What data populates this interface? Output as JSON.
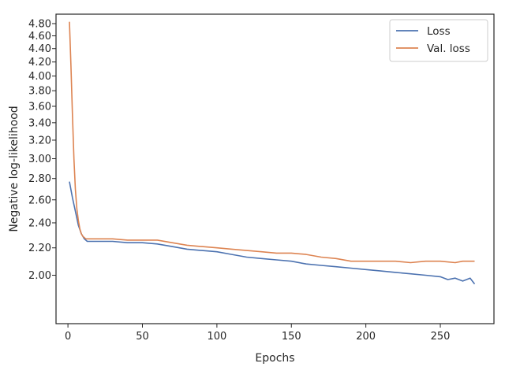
{
  "chart_data": {
    "type": "line",
    "title": "",
    "xlabel": "Epochs",
    "ylabel": "Negative log-likelihood",
    "xlim": [
      -8,
      286
    ],
    "ylim": [
      1.69,
      4.96
    ],
    "y_scale": "log",
    "grid": false,
    "legend_placement": "top-right",
    "x_ticks": [
      0,
      50,
      100,
      150,
      200,
      250
    ],
    "x_tick_labels": [
      "0",
      "50",
      "100",
      "150",
      "200",
      "250"
    ],
    "y_ticks": [
      2.0,
      2.2,
      2.4,
      2.6,
      2.8,
      3.0,
      3.2,
      3.4,
      3.6,
      3.8,
      4.0,
      4.2,
      4.4,
      4.6,
      4.8
    ],
    "y_tick_labels": [
      "2.00",
      "2.20",
      "2.40",
      "2.60",
      "2.80",
      "3.00",
      "3.20",
      "3.40",
      "3.60",
      "3.80",
      "4.00",
      "4.20",
      "4.40",
      "4.60",
      "4.80"
    ],
    "series": [
      {
        "name": "Loss",
        "color": "#4c72b0",
        "x": [
          1,
          3,
          5,
          7,
          9,
          11,
          13,
          16,
          20,
          25,
          30,
          40,
          50,
          60,
          70,
          80,
          90,
          100,
          110,
          120,
          130,
          140,
          150,
          160,
          170,
          180,
          190,
          200,
          210,
          220,
          230,
          240,
          250,
          255,
          260,
          265,
          270,
          273
        ],
        "y": [
          2.77,
          2.62,
          2.5,
          2.38,
          2.31,
          2.27,
          2.25,
          2.25,
          2.25,
          2.25,
          2.25,
          2.24,
          2.24,
          2.23,
          2.21,
          2.19,
          2.18,
          2.17,
          2.15,
          2.13,
          2.12,
          2.11,
          2.1,
          2.08,
          2.07,
          2.06,
          2.05,
          2.04,
          2.03,
          2.02,
          2.01,
          2.0,
          1.99,
          1.97,
          1.98,
          1.96,
          1.98,
          1.94
        ]
      },
      {
        "name": "Val. loss",
        "color": "#dd8452",
        "x": [
          1,
          2,
          3,
          4,
          5,
          6,
          7,
          8,
          9,
          10,
          11,
          12,
          14,
          16,
          20,
          25,
          30,
          40,
          50,
          60,
          70,
          80,
          90,
          100,
          110,
          120,
          130,
          140,
          150,
          160,
          170,
          180,
          190,
          200,
          210,
          220,
          230,
          240,
          250,
          260,
          265,
          273
        ],
        "y": [
          4.83,
          4.15,
          3.5,
          3.0,
          2.7,
          2.52,
          2.42,
          2.35,
          2.31,
          2.29,
          2.28,
          2.27,
          2.27,
          2.27,
          2.27,
          2.27,
          2.27,
          2.26,
          2.26,
          2.26,
          2.24,
          2.22,
          2.21,
          2.2,
          2.19,
          2.18,
          2.17,
          2.16,
          2.16,
          2.15,
          2.13,
          2.12,
          2.1,
          2.1,
          2.1,
          2.1,
          2.09,
          2.1,
          2.1,
          2.09,
          2.1,
          2.1
        ]
      }
    ]
  }
}
